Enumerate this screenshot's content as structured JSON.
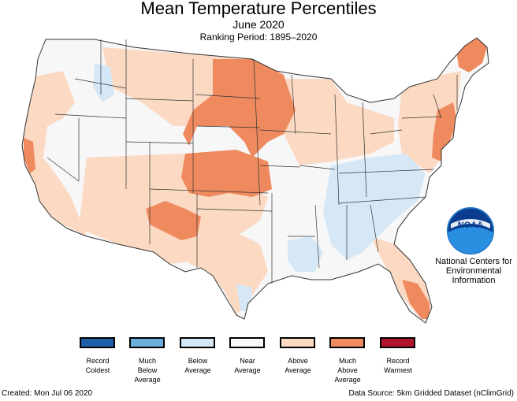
{
  "header": {
    "title": "Mean Temperature Percentiles",
    "subtitle": "June 2020",
    "ranking_period": "Ranking Period: 1895–2020"
  },
  "logo": {
    "name": "noaa-logo",
    "text": "NOAA",
    "caption": "National Centers for\nEnvironmental\nInformation"
  },
  "legend": [
    {
      "label": "Record\nColdest",
      "color": "#1d5fa8"
    },
    {
      "label": "Much\nBelow\nAverage",
      "color": "#6aaedb"
    },
    {
      "label": "Below\nAverage",
      "color": "#d6e8f5"
    },
    {
      "label": "Near\nAverage",
      "color": "#f7f7f7"
    },
    {
      "label": "Above\nAverage",
      "color": "#fbd9c2"
    },
    {
      "label": "Much\nAbove\nAverage",
      "color": "#ef8a5e"
    },
    {
      "label": "Record\nWarmest",
      "color": "#b0142e"
    }
  ],
  "footer": {
    "created": "Created: Mon Jul 06 2020",
    "source": "Data Source: 5km Gridded Dataset (nClimGrid)"
  },
  "map": {
    "classes": {
      "record_coldest": "#1d5fa8",
      "much_below": "#6aaedb",
      "below": "#d6e8f5",
      "near": "#f7f7f7",
      "above": "#fbd9c2",
      "much_above": "#ef8a5e",
      "record_warmest": "#b0142e"
    },
    "border_color": "#333333"
  }
}
